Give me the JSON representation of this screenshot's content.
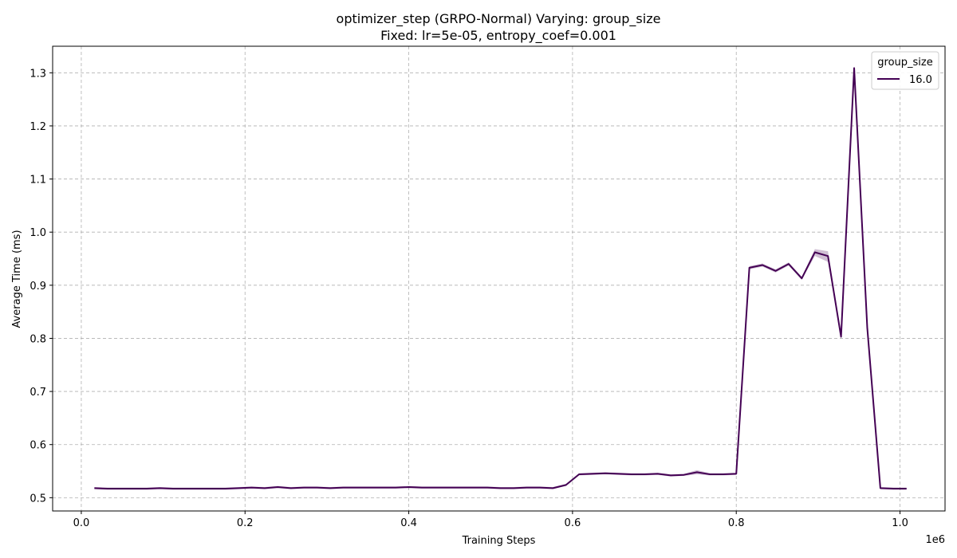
{
  "chart_data": {
    "type": "line",
    "title": "optimizer_step (GRPO-Normal) Varying: group_size",
    "subtitle": "Fixed: lr=5e-05, entropy_coef=0.001",
    "xlabel": "Training Steps",
    "ylabel": "Average Time (ms)",
    "x_offset_label": "1e6",
    "xlim": [
      -0.035,
      1.055
    ],
    "ylim": [
      0.475,
      1.35
    ],
    "xticks": [
      0.0,
      0.2,
      0.4,
      0.6,
      0.8,
      1.0
    ],
    "xtick_labels": [
      "0.0",
      "0.2",
      "0.4",
      "0.6",
      "0.8",
      "1.0"
    ],
    "yticks": [
      0.5,
      0.6,
      0.7,
      0.8,
      0.9,
      1.0,
      1.1,
      1.2,
      1.3
    ],
    "ytick_labels": [
      "0.5",
      "0.6",
      "0.7",
      "0.8",
      "0.9",
      "1.0",
      "1.1",
      "1.2",
      "1.3"
    ],
    "grid": true,
    "legend_title": "group_size",
    "legend_position": "top-right",
    "series": [
      {
        "name": "16.0",
        "color": "#440154",
        "band_color": "#440154",
        "x": [
          0.016,
          0.032,
          0.048,
          0.064,
          0.08,
          0.096,
          0.112,
          0.128,
          0.144,
          0.16,
          0.176,
          0.192,
          0.208,
          0.224,
          0.24,
          0.256,
          0.272,
          0.288,
          0.304,
          0.32,
          0.336,
          0.352,
          0.368,
          0.384,
          0.4,
          0.416,
          0.432,
          0.448,
          0.464,
          0.48,
          0.496,
          0.512,
          0.528,
          0.544,
          0.56,
          0.576,
          0.592,
          0.608,
          0.624,
          0.64,
          0.656,
          0.672,
          0.688,
          0.704,
          0.72,
          0.736,
          0.752,
          0.768,
          0.784,
          0.8,
          0.816,
          0.832,
          0.848,
          0.864,
          0.88,
          0.896,
          0.912,
          0.928,
          0.944,
          0.96,
          0.976,
          0.992,
          1.008
        ],
        "y": [
          0.518,
          0.517,
          0.517,
          0.517,
          0.517,
          0.518,
          0.517,
          0.517,
          0.517,
          0.517,
          0.517,
          0.518,
          0.519,
          0.518,
          0.52,
          0.518,
          0.519,
          0.519,
          0.518,
          0.519,
          0.519,
          0.519,
          0.519,
          0.519,
          0.52,
          0.519,
          0.519,
          0.519,
          0.519,
          0.519,
          0.519,
          0.518,
          0.518,
          0.519,
          0.519,
          0.518,
          0.524,
          0.544,
          0.545,
          0.546,
          0.545,
          0.544,
          0.544,
          0.545,
          0.542,
          0.543,
          0.548,
          0.544,
          0.544,
          0.545,
          0.933,
          0.938,
          0.927,
          0.94,
          0.913,
          0.962,
          0.955,
          0.803,
          1.309,
          0.82,
          0.518,
          0.517,
          0.517
        ],
        "y_lower": [
          0.516,
          0.515,
          0.515,
          0.515,
          0.515,
          0.516,
          0.515,
          0.515,
          0.515,
          0.515,
          0.515,
          0.516,
          0.517,
          0.516,
          0.518,
          0.516,
          0.517,
          0.517,
          0.516,
          0.517,
          0.517,
          0.517,
          0.517,
          0.517,
          0.518,
          0.517,
          0.517,
          0.517,
          0.517,
          0.517,
          0.517,
          0.516,
          0.516,
          0.517,
          0.517,
          0.516,
          0.522,
          0.542,
          0.543,
          0.544,
          0.543,
          0.542,
          0.542,
          0.543,
          0.54,
          0.541,
          0.544,
          0.542,
          0.542,
          0.543,
          0.93,
          0.935,
          0.924,
          0.937,
          0.91,
          0.955,
          0.944,
          0.8,
          1.305,
          0.816,
          0.516,
          0.515,
          0.515
        ],
        "y_upper": [
          0.52,
          0.519,
          0.519,
          0.519,
          0.519,
          0.52,
          0.519,
          0.519,
          0.519,
          0.519,
          0.519,
          0.52,
          0.521,
          0.52,
          0.522,
          0.52,
          0.521,
          0.521,
          0.52,
          0.521,
          0.521,
          0.521,
          0.521,
          0.521,
          0.522,
          0.521,
          0.521,
          0.521,
          0.521,
          0.521,
          0.521,
          0.52,
          0.52,
          0.521,
          0.521,
          0.52,
          0.526,
          0.546,
          0.547,
          0.548,
          0.547,
          0.546,
          0.546,
          0.547,
          0.544,
          0.545,
          0.552,
          0.546,
          0.546,
          0.547,
          0.936,
          0.941,
          0.93,
          0.943,
          0.916,
          0.968,
          0.964,
          0.806,
          1.313,
          0.824,
          0.52,
          0.519,
          0.519
        ]
      }
    ]
  }
}
